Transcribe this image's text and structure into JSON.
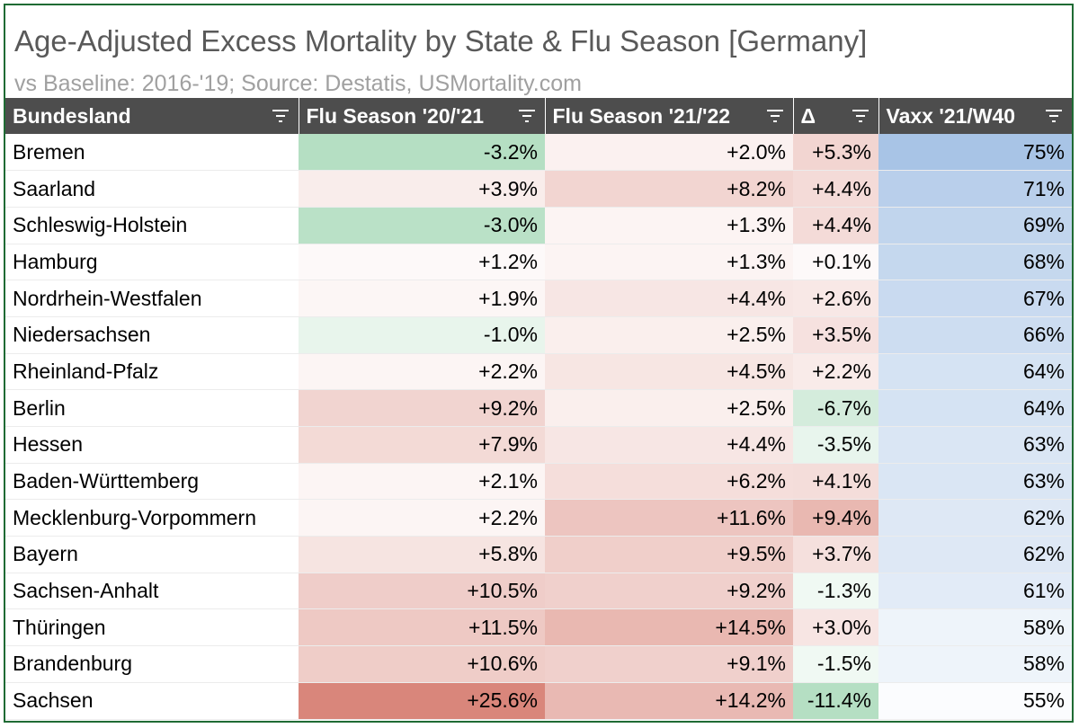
{
  "chart_data": {
    "type": "table",
    "title": "Age-Adjusted Excess Mortality by State & Flu Season [Germany]",
    "subtitle": "vs Baseline: 2016-'19; Source: Destatis, USMortality.com",
    "columns": [
      "Bundesland",
      "Flu Season '20/'21",
      "Flu Season '21/'22",
      "Δ",
      "Vaxx '21/W40"
    ],
    "rows": [
      {
        "state": "Bremen",
        "fs2021": "-3.2%",
        "fs2122": "+2.0%",
        "delta": "+5.3%",
        "vaxx": "75%"
      },
      {
        "state": "Saarland",
        "fs2021": "+3.9%",
        "fs2122": "+8.2%",
        "delta": "+4.4%",
        "vaxx": "71%"
      },
      {
        "state": "Schleswig-Holstein",
        "fs2021": "-3.0%",
        "fs2122": "+1.3%",
        "delta": "+4.4%",
        "vaxx": "69%"
      },
      {
        "state": "Hamburg",
        "fs2021": "+1.2%",
        "fs2122": "+1.3%",
        "delta": "+0.1%",
        "vaxx": "68%"
      },
      {
        "state": "Nordrhein-Westfalen",
        "fs2021": "+1.9%",
        "fs2122": "+4.4%",
        "delta": "+2.6%",
        "vaxx": "67%"
      },
      {
        "state": "Niedersachsen",
        "fs2021": "-1.0%",
        "fs2122": "+2.5%",
        "delta": "+3.5%",
        "vaxx": "66%"
      },
      {
        "state": "Rheinland-Pfalz",
        "fs2021": "+2.2%",
        "fs2122": "+4.5%",
        "delta": "+2.2%",
        "vaxx": "64%"
      },
      {
        "state": "Berlin",
        "fs2021": "+9.2%",
        "fs2122": "+2.5%",
        "delta": "-6.7%",
        "vaxx": "64%"
      },
      {
        "state": "Hessen",
        "fs2021": "+7.9%",
        "fs2122": "+4.4%",
        "delta": "-3.5%",
        "vaxx": "63%"
      },
      {
        "state": "Baden-Württemberg",
        "fs2021": "+2.1%",
        "fs2122": "+6.2%",
        "delta": "+4.1%",
        "vaxx": "63%"
      },
      {
        "state": "Mecklenburg-Vorpommern",
        "fs2021": "+2.2%",
        "fs2122": "+11.6%",
        "delta": "+9.4%",
        "vaxx": "62%"
      },
      {
        "state": "Bayern",
        "fs2021": "+5.8%",
        "fs2122": "+9.5%",
        "delta": "+3.7%",
        "vaxx": "62%"
      },
      {
        "state": "Sachsen-Anhalt",
        "fs2021": "+10.5%",
        "fs2122": "+9.2%",
        "delta": "-1.3%",
        "vaxx": "61%"
      },
      {
        "state": "Thüringen",
        "fs2021": "+11.5%",
        "fs2122": "+14.5%",
        "delta": "+3.0%",
        "vaxx": "58%"
      },
      {
        "state": "Brandenburg",
        "fs2021": "+10.6%",
        "fs2122": "+9.1%",
        "delta": "-1.5%",
        "vaxx": "58%"
      },
      {
        "state": "Sachsen",
        "fs2021": "+25.6%",
        "fs2122": "+14.2%",
        "delta": "-11.4%",
        "vaxx": "55%"
      }
    ]
  },
  "colors": {
    "header_bg": "#4d4d4d",
    "border": "#1f6b34",
    "positive": "#d9867b",
    "negative": "#b5dfc3",
    "vaxx": "#a8c4e6"
  }
}
